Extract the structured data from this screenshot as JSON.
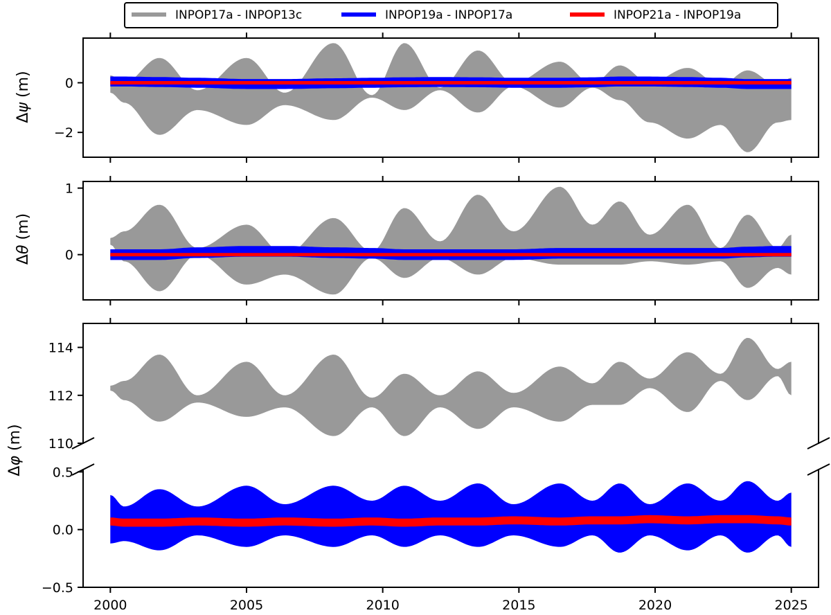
{
  "chart_data": {
    "type": "line",
    "legend": {
      "placement": "top-center",
      "entries": [
        {
          "name": "INPOP17a - INPOP13c",
          "color": "#999999"
        },
        {
          "name": "INPOP19a - INPOP17a",
          "color": "#0000ff"
        },
        {
          "name": "INPOP21a - INPOP19a",
          "color": "#ff0000"
        }
      ]
    },
    "x": {
      "range": [
        1999,
        2026
      ],
      "ticks": [
        2000,
        2005,
        2010,
        2015,
        2020,
        2025
      ],
      "tick_labels": [
        "2000",
        "2005",
        "2010",
        "2015",
        "2020",
        "2025"
      ]
    },
    "envelope_nodes": [
      2000,
      2000.5,
      2001.8,
      2003.2,
      2005.0,
      2006.4,
      2008.2,
      2009.6,
      2010.8,
      2012.1,
      2013.5,
      2014.8,
      2016.5,
      2017.7,
      2018.7,
      2019.8,
      2021.2,
      2022.4,
      2023.4,
      2024.5,
      2025
    ],
    "panels": [
      {
        "id": "psi",
        "ylabel_symbol": "ψ",
        "ylabel_unit": " (m)",
        "ylim": [
          -3.0,
          1.8
        ],
        "y_ticks": [
          0,
          -2
        ],
        "y_tick_labels": [
          "0",
          "−2"
        ],
        "series": [
          {
            "name": "INPOP17a - INPOP13c",
            "upper": [
              0.3,
              0.0,
              1.0,
              -0.3,
              1.0,
              -0.4,
              1.6,
              -0.5,
              1.6,
              -0.2,
              1.3,
              0.0,
              0.85,
              -0.05,
              0.7,
              0.0,
              0.6,
              -0.1,
              0.5,
              -0.1,
              0.2
            ],
            "lower": [
              -0.4,
              -0.8,
              -2.1,
              -1.1,
              -1.7,
              -0.9,
              -1.5,
              -0.6,
              -1.1,
              -0.3,
              -1.2,
              -0.15,
              -1.0,
              -0.2,
              -0.7,
              -1.6,
              -2.25,
              -1.7,
              -2.8,
              -1.6,
              -1.5
            ]
          },
          {
            "name": "INPOP19a - INPOP17a",
            "center": [
              0.05,
              0.05,
              0.03,
              0.0,
              -0.05,
              -0.05,
              -0.02,
              0.0,
              0.02,
              0.03,
              0.02,
              0.0,
              0.0,
              0.02,
              0.05,
              0.05,
              0.03,
              0.0,
              -0.05,
              -0.05,
              -0.05
            ],
            "halfwidth": 0.2
          },
          {
            "name": "INPOP21a - INPOP19a",
            "center": [
              0.0,
              0.0,
              0.0,
              0.0,
              0.0,
              0.0,
              0.0,
              0.0,
              0.0,
              0.0,
              0.0,
              0.0,
              0.0,
              0.0,
              0.0,
              0.0,
              0.0,
              0.0,
              0.0,
              0.0,
              0.0
            ],
            "halfwidth": 0.07
          }
        ]
      },
      {
        "id": "theta",
        "ylabel_symbol": "θ",
        "ylabel_unit": " (m)",
        "ylim": [
          -0.68,
          1.1
        ],
        "y_ticks": [
          1,
          0
        ],
        "y_tick_labels": [
          "1",
          "0"
        ],
        "series": [
          {
            "name": "INPOP17a - INPOP13c",
            "upper": [
              0.25,
              0.35,
              0.75,
              0.1,
              0.45,
              0.0,
              0.55,
              0.05,
              0.7,
              0.2,
              0.9,
              0.35,
              1.02,
              0.45,
              0.8,
              0.3,
              0.75,
              0.1,
              0.6,
              0.1,
              0.3
            ],
            "lower": [
              0.15,
              -0.1,
              -0.55,
              0.0,
              -0.45,
              -0.3,
              -0.6,
              -0.05,
              -0.35,
              -0.05,
              -0.3,
              -0.05,
              -0.15,
              -0.15,
              -0.15,
              -0.1,
              -0.15,
              -0.1,
              -0.5,
              -0.2,
              -0.3
            ]
          },
          {
            "name": "INPOP19a - INPOP17a",
            "center": [
              0.0,
              0.0,
              0.0,
              0.03,
              0.05,
              0.05,
              0.03,
              0.02,
              0.0,
              0.0,
              0.0,
              0.0,
              0.02,
              0.02,
              0.02,
              0.02,
              0.02,
              0.02,
              0.04,
              0.05,
              0.05
            ],
            "halfwidth": 0.08
          },
          {
            "name": "INPOP21a - INPOP19a",
            "center": [
              0.0,
              0.0,
              0.0,
              0.0,
              0.0,
              0.0,
              0.0,
              0.0,
              0.0,
              0.0,
              0.0,
              0.0,
              0.0,
              0.0,
              0.0,
              0.0,
              0.0,
              0.0,
              0.0,
              0.0,
              0.0
            ],
            "halfwidth": 0.025
          }
        ]
      },
      {
        "id": "phi_upper",
        "ylabel_symbol": "φ",
        "ylabel_unit": " (m)",
        "shared_ylabel": true,
        "ylim": [
          110,
          115
        ],
        "y_ticks": [
          114,
          112,
          110
        ],
        "y_tick_labels": [
          "114",
          "112",
          "110"
        ],
        "series": [
          {
            "name": "INPOP17a - INPOP13c",
            "upper": [
              112.4,
              112.6,
              113.7,
              112.0,
              113.4,
              112.0,
              113.7,
              111.9,
              112.9,
              112.0,
              113.0,
              112.1,
              113.2,
              112.5,
              113.4,
              112.7,
              113.8,
              112.9,
              114.4,
              113.1,
              113.4
            ],
            "lower": [
              112.2,
              111.8,
              110.9,
              111.7,
              111.1,
              111.5,
              110.3,
              111.5,
              110.3,
              111.5,
              110.6,
              111.5,
              110.9,
              111.6,
              111.6,
              112.3,
              111.3,
              112.6,
              111.8,
              112.8,
              112.0
            ]
          }
        ]
      },
      {
        "id": "phi_lower",
        "ylim": [
          -0.5,
          0.52
        ],
        "y_ticks": [
          0.5,
          0.0,
          -0.5
        ],
        "y_tick_labels": [
          "0.5",
          "0.0",
          "−0.5"
        ],
        "series": [
          {
            "name": "INPOP19a - INPOP17a",
            "upper": [
              0.3,
              0.2,
              0.35,
              0.2,
              0.38,
              0.22,
              0.38,
              0.25,
              0.38,
              0.25,
              0.4,
              0.22,
              0.4,
              0.25,
              0.4,
              0.22,
              0.4,
              0.25,
              0.42,
              0.25,
              0.32
            ],
            "lower": [
              -0.12,
              -0.1,
              -0.18,
              -0.05,
              -0.15,
              -0.05,
              -0.15,
              -0.05,
              -0.15,
              -0.05,
              -0.15,
              -0.05,
              -0.15,
              -0.05,
              -0.2,
              -0.05,
              -0.18,
              -0.05,
              -0.2,
              -0.05,
              -0.15
            ]
          },
          {
            "name": "INPOP21a - INPOP19a",
            "center": [
              0.07,
              0.06,
              0.06,
              0.07,
              0.06,
              0.07,
              0.06,
              0.07,
              0.06,
              0.07,
              0.07,
              0.08,
              0.07,
              0.08,
              0.08,
              0.09,
              0.08,
              0.09,
              0.09,
              0.08,
              0.07
            ],
            "halfwidth": 0.035
          }
        ]
      }
    ]
  }
}
